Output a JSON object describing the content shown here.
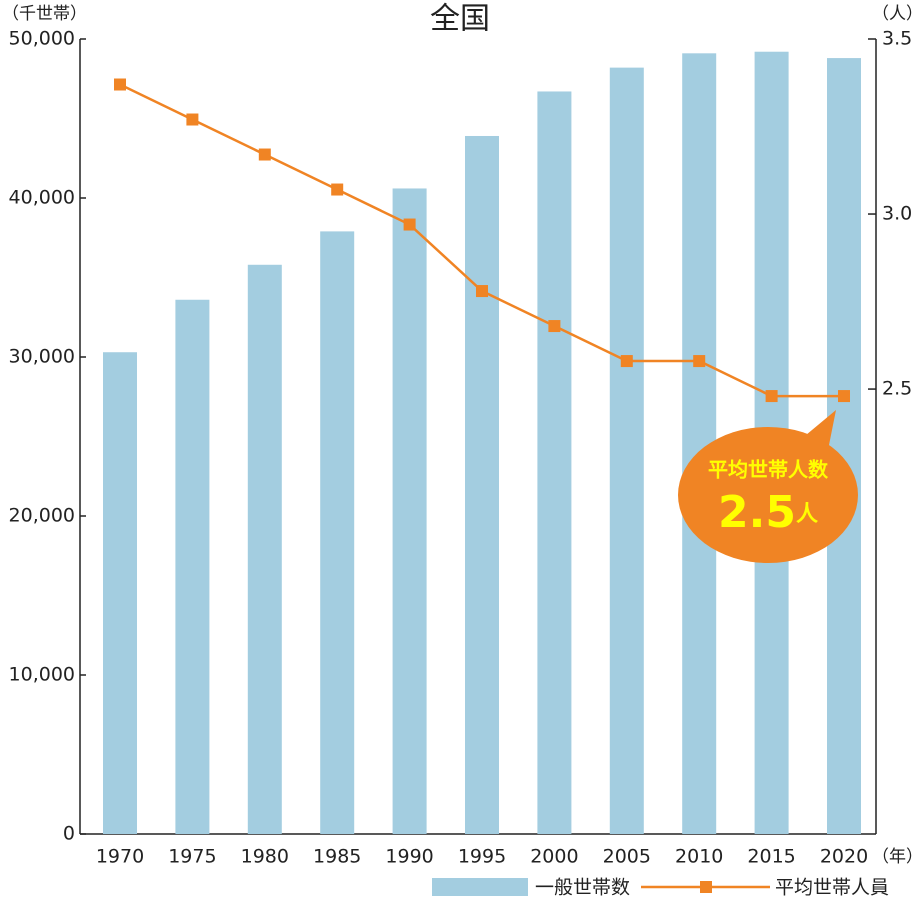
{
  "chart_data": {
    "type": "bar-line",
    "title": "全国",
    "y_label": "（千世帯）",
    "y2_label": "（人）",
    "x_label": "（年）",
    "categories": [
      "1970",
      "1975",
      "1980",
      "1985",
      "1990",
      "1995",
      "2000",
      "2005",
      "2010",
      "2015",
      "2020"
    ],
    "series": [
      {
        "name": "一般世帯数",
        "type": "bar",
        "color": "#a3cde0",
        "values": [
          30300,
          33600,
          35800,
          37900,
          40600,
          43900,
          46700,
          48200,
          49100,
          49200,
          48800
        ]
      },
      {
        "name": "平均世帯人員",
        "type": "line",
        "axis": "y2",
        "color": "#f08424",
        "values": [
          3.37,
          3.27,
          3.17,
          3.07,
          2.97,
          2.78,
          2.68,
          2.58,
          2.58,
          2.48,
          2.48
        ]
      }
    ],
    "ylim": [
      0,
      50000
    ],
    "yticks": [
      0,
      {
        "value": 10000,
        "label": "10,000"
      },
      {
        "value": 20000,
        "label": "20,000"
      },
      {
        "value": 30000,
        "label": "30,000"
      },
      {
        "value": 40000,
        "label": "40,000"
      },
      {
        "value": 50000,
        "label": "50,000"
      }
    ],
    "y2lim": [
      1.229,
      3.5
    ],
    "y2ticks": [
      2.5,
      {
        "value": 3.0,
        "label": "3.0"
      },
      3.5
    ],
    "annotation": {
      "text": "平均世帯人数",
      "value": 2.5,
      "unit": "人",
      "color": "#f08424"
    }
  }
}
